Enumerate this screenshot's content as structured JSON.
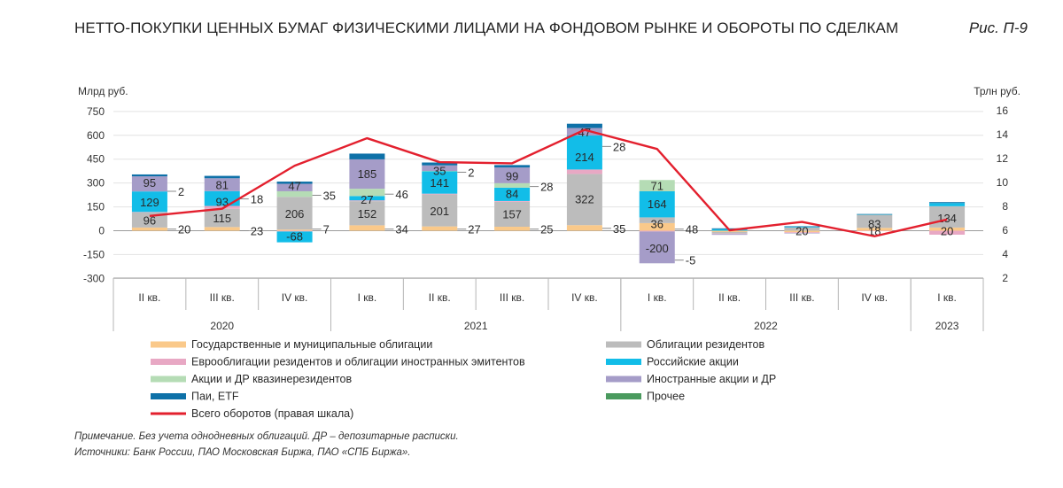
{
  "title": "НЕТТО-ПОКУПКИ ЦЕННЫХ БУМАГ ФИЗИЧЕСКИМИ ЛИЦАМИ НА ФОНДОВОМ РЫНКЕ И ОБОРОТЫ ПО СДЕЛКАМ",
  "figure_label": "Рис. П-9",
  "note": "Примечание. Без учета однодневных облигаций. ДР – депозитарные расписки.",
  "sources": "Источники: Банк России, ПАО Московская Биржа, ПАО «СПБ Биржа».",
  "chart_data": {
    "type": "bar",
    "stacked": true,
    "ylabel_left": "Млрд руб.",
    "ylabel_right": "Трлн руб.",
    "ylim_left": [
      -300,
      750
    ],
    "yticks_left": [
      -300,
      -150,
      0,
      150,
      300,
      450,
      600,
      750
    ],
    "ylim_right": [
      2,
      16
    ],
    "yticks_right": [
      2,
      4,
      6,
      8,
      10,
      12,
      14,
      16
    ],
    "categories": [
      "II кв.",
      "III кв.",
      "IV кв.",
      "I кв.",
      "II кв.",
      "III кв.",
      "IV кв.",
      "I кв.",
      "II кв.",
      "III кв.",
      "IV кв.",
      "I кв."
    ],
    "years": [
      {
        "label": "2020",
        "start": 0,
        "end": 2
      },
      {
        "label": "2021",
        "start": 3,
        "end": 6
      },
      {
        "label": "2022",
        "start": 7,
        "end": 10
      },
      {
        "label": "2023",
        "start": 11,
        "end": 11
      }
    ],
    "series": [
      {
        "name": "Государственные и муниципальные облигации",
        "color": "#fac98a",
        "values": [
          20,
          23,
          7,
          34,
          27,
          25,
          35,
          48,
          -8,
          -10,
          18,
          20
        ]
      },
      {
        "name": "Облигации резидентов",
        "color": "#bcbcbc",
        "values": [
          96,
          115,
          206,
          152,
          201,
          157,
          322,
          36,
          -10,
          20,
          83,
          134
        ]
      },
      {
        "name": "Еврооблигации резидентов и облигации иностранных эмитентов",
        "color": "#e8a8c4",
        "values": [
          2,
          18,
          -5,
          5,
          5,
          5,
          28,
          -5,
          -3,
          -4,
          -3,
          -25
        ]
      },
      {
        "name": "Российские акции",
        "color": "#12bde8",
        "values": [
          129,
          93,
          -68,
          27,
          141,
          84,
          214,
          164,
          10,
          4,
          2,
          20
        ]
      },
      {
        "name": "Акции и ДР квазинерезидентов",
        "color": "#b5dcb5",
        "values": [
          0,
          0,
          35,
          46,
          2,
          28,
          0,
          71,
          0,
          0,
          0,
          0
        ]
      },
      {
        "name": "Иностранные акции и ДР",
        "color": "#a59cc8",
        "values": [
          95,
          81,
          47,
          185,
          35,
          99,
          47,
          -200,
          -5,
          -3,
          0,
          0
        ]
      },
      {
        "name": "Паи, ETF",
        "color": "#0e71a8",
        "values": [
          12,
          15,
          14,
          36,
          18,
          15,
          27,
          0,
          5,
          4,
          2,
          6
        ]
      },
      {
        "name": "Прочее",
        "color": "#4a9a5e",
        "values": [
          0,
          0,
          0,
          0,
          0,
          0,
          0,
          0,
          0,
          0,
          0,
          0
        ]
      }
    ],
    "line": {
      "name": "Всего оборотов (правая шкала)",
      "color": "#e3202e",
      "axis": "right",
      "values": [
        7.2,
        7.8,
        11.4,
        13.7,
        11.7,
        11.6,
        14.4,
        12.8,
        6.0,
        6.7,
        5.5,
        6.9
      ]
    },
    "data_labels": [
      {
        "i": 0,
        "text": "95",
        "y": 305,
        "mode": "in"
      },
      {
        "i": 0,
        "text": "129",
        "y": 180,
        "mode": "in"
      },
      {
        "i": 0,
        "text": "96",
        "y": 68,
        "mode": "in"
      },
      {
        "i": 0,
        "text": "2",
        "y": 248,
        "mode": "out"
      },
      {
        "i": 0,
        "text": "20",
        "y": 10,
        "mode": "out"
      },
      {
        "i": 1,
        "text": "81",
        "y": 290,
        "mode": "in"
      },
      {
        "i": 1,
        "text": "93",
        "y": 184,
        "mode": "in"
      },
      {
        "i": 1,
        "text": "115",
        "y": 80,
        "mode": "in"
      },
      {
        "i": 1,
        "text": "18",
        "y": 200,
        "mode": "out"
      },
      {
        "i": 1,
        "text": "23",
        "y": 0,
        "mode": "out"
      },
      {
        "i": 2,
        "text": "47",
        "y": 283,
        "mode": "in"
      },
      {
        "i": 2,
        "text": "206",
        "y": 110,
        "mode": "in"
      },
      {
        "i": 2,
        "text": "-68",
        "y": -34,
        "mode": "in"
      },
      {
        "i": 2,
        "text": "35",
        "y": 223,
        "mode": "out"
      },
      {
        "i": 2,
        "text": "7",
        "y": 10,
        "mode": "out"
      },
      {
        "i": 3,
        "text": "185",
        "y": 358,
        "mode": "in"
      },
      {
        "i": 3,
        "text": "27",
        "y": 198,
        "mode": "in"
      },
      {
        "i": 3,
        "text": "152",
        "y": 110,
        "mode": "in"
      },
      {
        "i": 3,
        "text": "46",
        "y": 230,
        "mode": "out"
      },
      {
        "i": 3,
        "text": "34",
        "y": 10,
        "mode": "out"
      },
      {
        "i": 4,
        "text": "35",
        "y": 380,
        "mode": "in"
      },
      {
        "i": 4,
        "text": "141",
        "y": 305,
        "mode": "in"
      },
      {
        "i": 4,
        "text": "201",
        "y": 125,
        "mode": "in"
      },
      {
        "i": 4,
        "text": "2",
        "y": 368,
        "mode": "out"
      },
      {
        "i": 4,
        "text": "27",
        "y": 10,
        "mode": "out"
      },
      {
        "i": 5,
        "text": "99",
        "y": 345,
        "mode": "in"
      },
      {
        "i": 5,
        "text": "84",
        "y": 235,
        "mode": "in"
      },
      {
        "i": 5,
        "text": "157",
        "y": 105,
        "mode": "in"
      },
      {
        "i": 5,
        "text": "28",
        "y": 278,
        "mode": "out"
      },
      {
        "i": 5,
        "text": "25",
        "y": 10,
        "mode": "out"
      },
      {
        "i": 6,
        "text": "47",
        "y": 620,
        "mode": "in"
      },
      {
        "i": 6,
        "text": "214",
        "y": 465,
        "mode": "in"
      },
      {
        "i": 6,
        "text": "322",
        "y": 200,
        "mode": "in"
      },
      {
        "i": 6,
        "text": "28",
        "y": 530,
        "mode": "out"
      },
      {
        "i": 6,
        "text": "35",
        "y": 15,
        "mode": "out"
      },
      {
        "i": 7,
        "text": "71",
        "y": 285,
        "mode": "in"
      },
      {
        "i": 7,
        "text": "164",
        "y": 170,
        "mode": "in"
      },
      {
        "i": 7,
        "text": "36",
        "y": 45,
        "mode": "in"
      },
      {
        "i": 7,
        "text": "-200",
        "y": -110,
        "mode": "in"
      },
      {
        "i": 7,
        "text": "48",
        "y": 10,
        "mode": "out"
      },
      {
        "i": 7,
        "text": "-5",
        "y": -185,
        "mode": "out"
      },
      {
        "i": 9,
        "text": "20",
        "y": 0,
        "mode": "in"
      },
      {
        "i": 10,
        "text": "83",
        "y": 45,
        "mode": "in"
      },
      {
        "i": 10,
        "text": "18",
        "y": 0,
        "mode": "in"
      },
      {
        "i": 11,
        "text": "134",
        "y": 80,
        "mode": "in"
      },
      {
        "i": 11,
        "text": "20",
        "y": 0,
        "mode": "in"
      }
    ],
    "legend_left": [
      "Государственные и муниципальные облигации",
      "Еврооблигации резидентов и облигации иностранных эмитентов",
      "Акции и ДР квазинерезидентов",
      "Паи, ETF",
      "Всего оборотов (правая шкала)"
    ],
    "legend_right": [
      "Облигации резидентов",
      "Российские акции",
      "Иностранные акции и ДР",
      "Прочее"
    ],
    "grid": true
  }
}
